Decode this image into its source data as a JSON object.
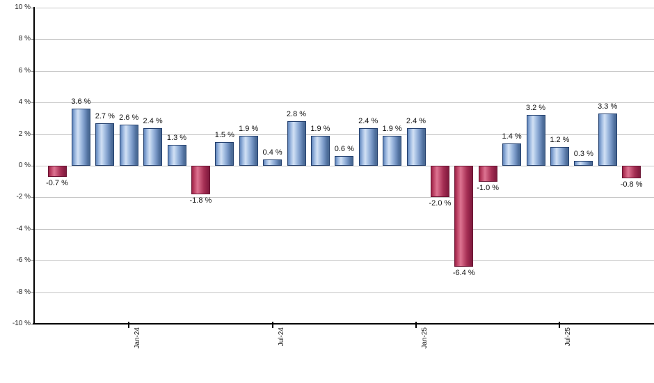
{
  "chart_data": {
    "type": "bar",
    "title": "",
    "xlabel": "",
    "ylabel": "",
    "ylim": [
      -10,
      10
    ],
    "y_tick_step": 2,
    "grid": true,
    "unit": "%",
    "y_tick_labels": [
      "10 %",
      "8 %",
      "6 %",
      "4 %",
      "2 %",
      "0 %",
      "-2 %",
      "-4 %",
      "-6 %",
      "-8 %",
      "-10 %"
    ],
    "x_tick_labels": [
      {
        "bar_index": 3,
        "label": "Jan-24"
      },
      {
        "bar_index": 9,
        "label": "Jul-24"
      },
      {
        "bar_index": 15,
        "label": "Jan-25"
      },
      {
        "bar_index": 21,
        "label": "Jul-25"
      }
    ],
    "values": [
      -0.7,
      3.6,
      2.7,
      2.6,
      2.4,
      1.3,
      -1.8,
      1.5,
      1.9,
      0.4,
      2.8,
      1.9,
      0.6,
      2.4,
      1.9,
      2.4,
      -2.0,
      -6.4,
      -1.0,
      1.4,
      3.2,
      1.2,
      0.3,
      3.3,
      -0.8
    ],
    "bar_labels": [
      "-0.7 %",
      "3.6 %",
      "2.7 %",
      "2.6 %",
      "2.4 %",
      "1.3 %",
      "-1.8 %",
      "1.5 %",
      "1.9 %",
      "0.4 %",
      "2.8 %",
      "1.9 %",
      "0.6 %",
      "2.4 %",
      "1.9 %",
      "2.4 %",
      "-2.0 %",
      "-6.4 %",
      "-1.0 %",
      "1.4 %",
      "3.2 %",
      "1.2 %",
      "0.3 %",
      "3.3 %",
      "-0.8 %"
    ],
    "colors": {
      "positive_gradient": [
        "#5f84ba",
        "#9db9e0",
        "#d2e1f4",
        "#a9c2e4",
        "#7b9ac8",
        "#51719f",
        "#47678f"
      ],
      "positive_border": "#24406e",
      "negative_gradient": [
        "#9c2246",
        "#c24a6c",
        "#dd7492",
        "#c65576",
        "#a63055",
        "#8c1f44",
        "#7e1d3e"
      ],
      "negative_border": "#6b1534",
      "gridline": "#c6c6c6",
      "axis": "#000000",
      "text": "#1a1a1a",
      "background": "#ffffff"
    },
    "legend": null
  }
}
